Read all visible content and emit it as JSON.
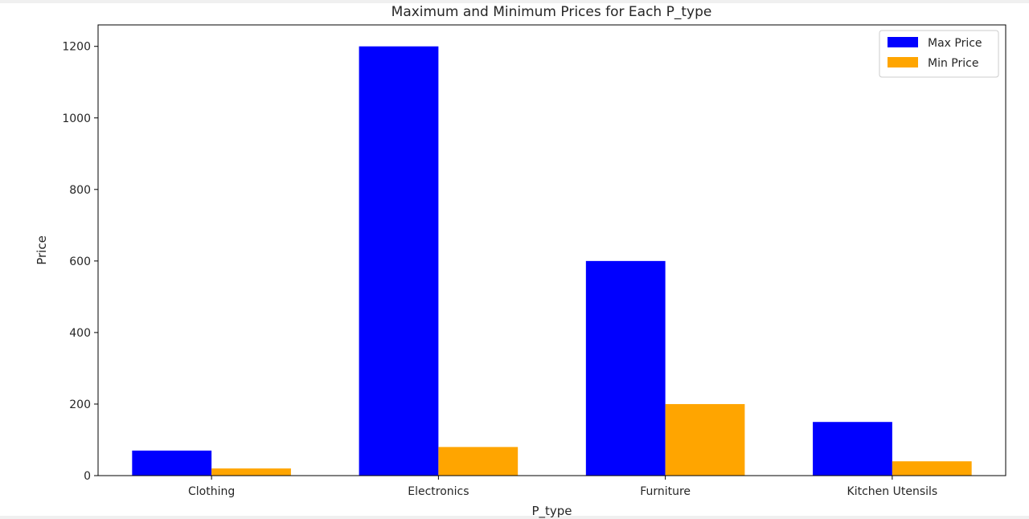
{
  "chart_data": {
    "type": "bar",
    "title": "Maximum and Minimum Prices for Each P_type",
    "xlabel": "P_type",
    "ylabel": "Price",
    "categories": [
      "Clothing",
      "Electronics",
      "Furniture",
      "Kitchen Utensils"
    ],
    "series": [
      {
        "name": "Max Price",
        "color": "#0000ff",
        "values": [
          70,
          1200,
          600,
          150
        ]
      },
      {
        "name": "Min Price",
        "color": "#ffa500",
        "values": [
          20,
          80,
          200,
          40
        ]
      }
    ],
    "ylim": [
      0,
      1260
    ],
    "yticks": [
      0,
      200,
      400,
      600,
      800,
      1000,
      1200
    ],
    "legend": "top-right",
    "grid": false
  }
}
